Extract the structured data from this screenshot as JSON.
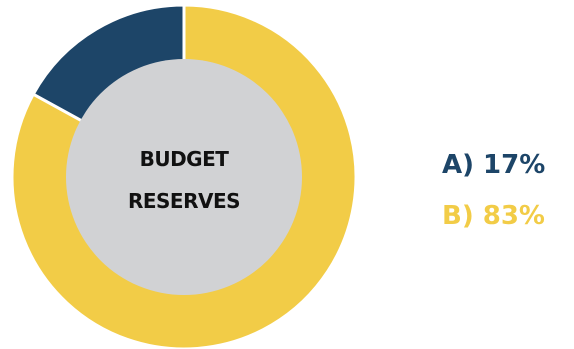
{
  "chart_data": {
    "type": "pie",
    "title": "BUDGET RESERVES",
    "center_label_lines": [
      "BUDGET",
      "RESERVES"
    ],
    "donut": true,
    "grid": false,
    "legend_placement": "right",
    "series": [
      {
        "label": "A",
        "value": 17,
        "display": "A) 17%",
        "color": "#1d4568"
      },
      {
        "label": "B",
        "value": 83,
        "display": "B) 83%",
        "color": "#f2cc47"
      }
    ],
    "center_color": "#d1d2d4",
    "separator_color": "#ffffff"
  }
}
